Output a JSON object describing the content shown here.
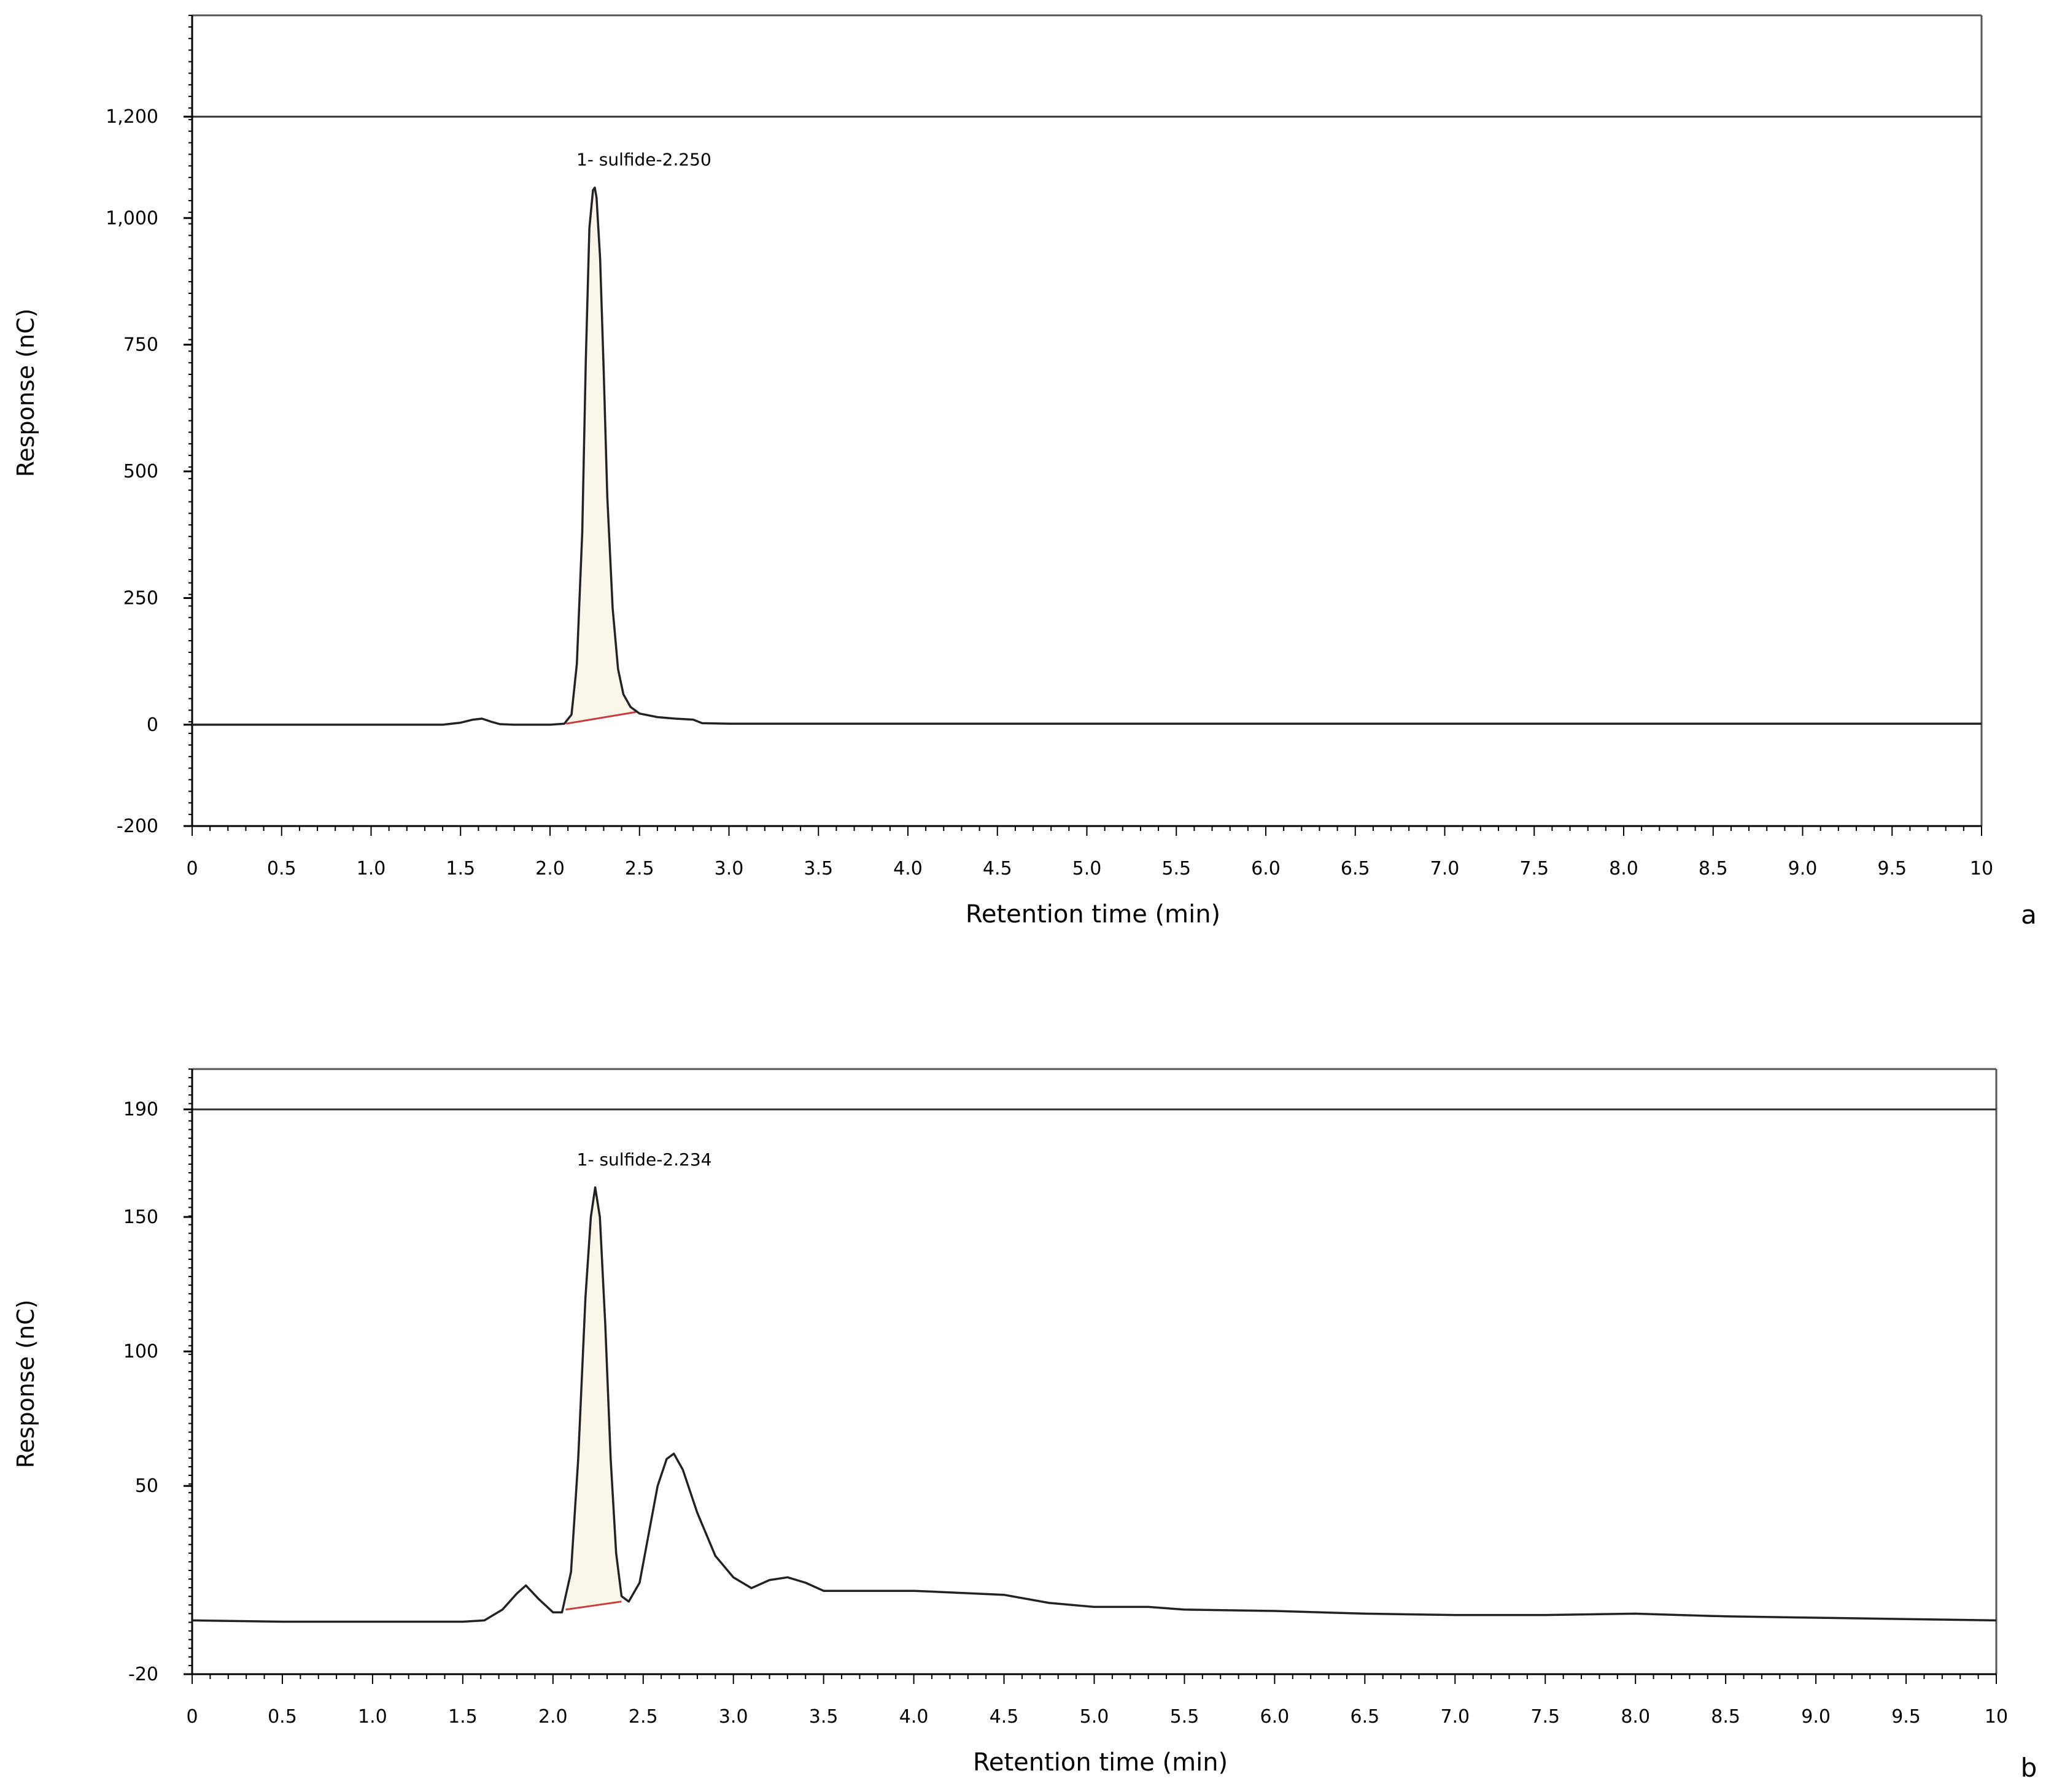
{
  "chart_data": [
    {
      "type": "line",
      "panel_label": "a",
      "xlabel": "Retention time (min)",
      "ylabel": "Response (nC)",
      "xlim": [
        0,
        10
      ],
      "ylim": [
        -200,
        1400
      ],
      "x_ticks": [
        "0",
        "0.5",
        "1.0",
        "1.5",
        "2.0",
        "2.5",
        "3.0",
        "3.5",
        "4.0",
        "4.5",
        "5.0",
        "5.5",
        "6.0",
        "6.5",
        "7.0",
        "7.5",
        "8.0",
        "8.5",
        "9.0",
        "9.5",
        "10"
      ],
      "y_ticks": [
        {
          "value": 1200,
          "label": "1,200"
        },
        {
          "value": 1000,
          "label": "1,000"
        },
        {
          "value": 750,
          "label": "750"
        },
        {
          "value": 500,
          "label": "500"
        },
        {
          "value": 250,
          "label": "250"
        },
        {
          "value": 0,
          "label": "0"
        },
        {
          "value": -200,
          "label": "-200"
        }
      ],
      "reference_line": 1200,
      "peak_annotation": {
        "text": "1- sulfide-2.250",
        "x": 2.25,
        "y": 1060
      },
      "integration": {
        "x_start": 2.09,
        "x_end": 2.48,
        "baseline_start": 2,
        "baseline_end": 25
      },
      "series": [
        {
          "points": [
            [
              0,
              0
            ],
            [
              0.5,
              0
            ],
            [
              1.0,
              0
            ],
            [
              1.4,
              0
            ],
            [
              1.5,
              4
            ],
            [
              1.57,
              10
            ],
            [
              1.62,
              12
            ],
            [
              1.67,
              6
            ],
            [
              1.72,
              1
            ],
            [
              1.8,
              0
            ],
            [
              2.0,
              0
            ],
            [
              2.08,
              2
            ],
            [
              2.12,
              20
            ],
            [
              2.15,
              120
            ],
            [
              2.18,
              380
            ],
            [
              2.2,
              720
            ],
            [
              2.22,
              980
            ],
            [
              2.24,
              1055
            ],
            [
              2.25,
              1060
            ],
            [
              2.26,
              1040
            ],
            [
              2.28,
              920
            ],
            [
              2.3,
              700
            ],
            [
              2.32,
              450
            ],
            [
              2.35,
              230
            ],
            [
              2.38,
              110
            ],
            [
              2.41,
              60
            ],
            [
              2.45,
              35
            ],
            [
              2.5,
              22
            ],
            [
              2.6,
              15
            ],
            [
              2.7,
              12
            ],
            [
              2.8,
              10
            ],
            [
              2.85,
              3
            ],
            [
              3.0,
              2
            ],
            [
              4.0,
              2
            ],
            [
              5.0,
              2
            ],
            [
              6.0,
              2
            ],
            [
              7.0,
              2
            ],
            [
              8.0,
              2
            ],
            [
              9.0,
              2
            ],
            [
              10.0,
              2
            ]
          ]
        }
      ]
    },
    {
      "type": "line",
      "panel_label": "b",
      "xlabel": "Retention time (min)",
      "ylabel": "Response (nC)",
      "xlim": [
        0,
        10
      ],
      "ylim": [
        -20,
        205
      ],
      "x_ticks": [
        "0",
        "0.5",
        "1.0",
        "1.5",
        "2.0",
        "2.5",
        "3.0",
        "3.5",
        "4.0",
        "4.5",
        "5.0",
        "5.5",
        "6.0",
        "6.5",
        "7.0",
        "7.5",
        "8.0",
        "8.5",
        "9.0",
        "9.5",
        "10"
      ],
      "y_ticks": [
        {
          "value": 190,
          "label": "190"
        },
        {
          "value": 150,
          "label": "150"
        },
        {
          "value": 100,
          "label": "100"
        },
        {
          "value": 50,
          "label": "50"
        },
        {
          "value": -20,
          "label": "-20"
        }
      ],
      "reference_line": 190,
      "peak_annotation": {
        "text": "1- sulfide-2.234",
        "x": 2.234,
        "y": 161
      },
      "integration": {
        "x_start": 2.07,
        "x_end": 2.38,
        "baseline_start": 4,
        "baseline_end": 7
      },
      "series": [
        {
          "points": [
            [
              0,
              0
            ],
            [
              0.5,
              -0.5
            ],
            [
              1.0,
              -0.5
            ],
            [
              1.5,
              -0.5
            ],
            [
              1.62,
              0
            ],
            [
              1.72,
              4
            ],
            [
              1.8,
              10
            ],
            [
              1.85,
              13
            ],
            [
              1.92,
              8
            ],
            [
              2.0,
              3
            ],
            [
              2.05,
              3
            ],
            [
              2.1,
              18
            ],
            [
              2.14,
              60
            ],
            [
              2.18,
              120
            ],
            [
              2.21,
              150
            ],
            [
              2.234,
              161
            ],
            [
              2.26,
              150
            ],
            [
              2.29,
              110
            ],
            [
              2.32,
              60
            ],
            [
              2.35,
              25
            ],
            [
              2.38,
              9
            ],
            [
              2.42,
              7
            ],
            [
              2.48,
              14
            ],
            [
              2.53,
              32
            ],
            [
              2.58,
              50
            ],
            [
              2.63,
              60
            ],
            [
              2.67,
              62
            ],
            [
              2.72,
              56
            ],
            [
              2.8,
              40
            ],
            [
              2.9,
              24
            ],
            [
              3.0,
              16
            ],
            [
              3.1,
              12
            ],
            [
              3.2,
              15
            ],
            [
              3.3,
              16
            ],
            [
              3.4,
              14
            ],
            [
              3.5,
              11
            ],
            [
              3.8,
              11
            ],
            [
              4.0,
              11
            ],
            [
              4.5,
              9.5
            ],
            [
              4.75,
              6.5
            ],
            [
              5.0,
              5
            ],
            [
              5.3,
              5
            ],
            [
              5.5,
              4
            ],
            [
              6.0,
              3.5
            ],
            [
              6.5,
              2.5
            ],
            [
              7.0,
              2
            ],
            [
              7.5,
              2
            ],
            [
              8.0,
              2.5
            ],
            [
              8.5,
              1.5
            ],
            [
              9.0,
              1
            ],
            [
              9.5,
              0.5
            ],
            [
              10.0,
              0
            ]
          ]
        }
      ]
    }
  ],
  "colors": {
    "trace": "#222222",
    "peak_fill": "#faf6ea",
    "baseline": "#c83c3c",
    "axis": "#000000"
  }
}
